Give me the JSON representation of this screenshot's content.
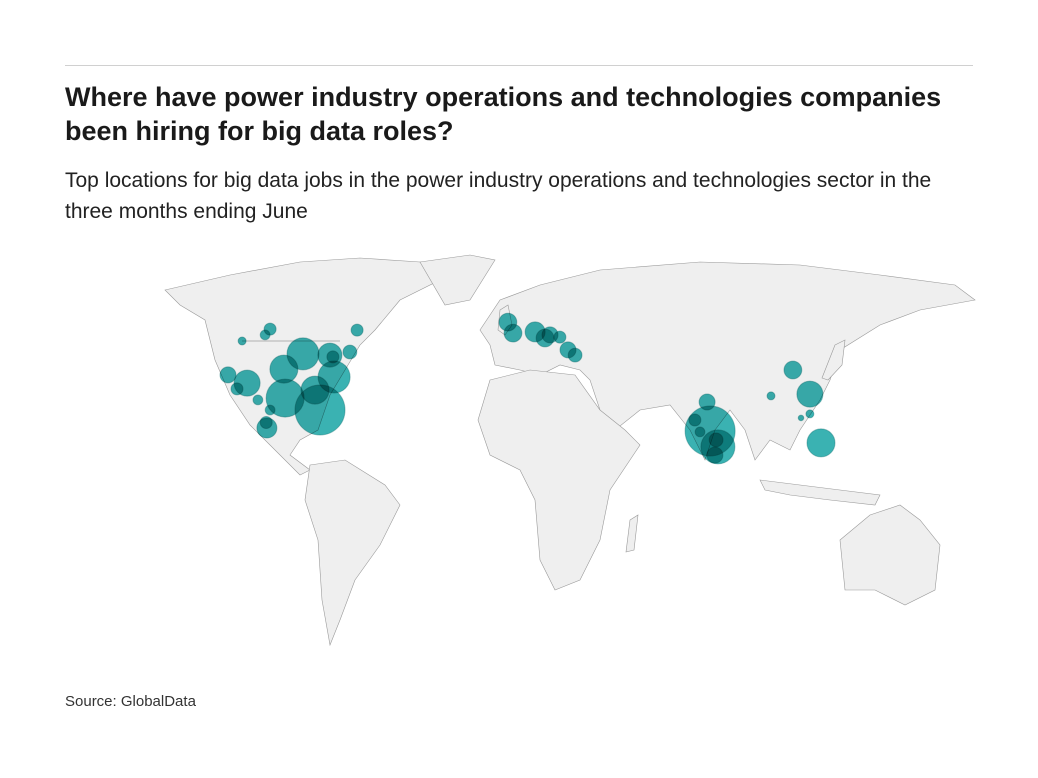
{
  "header": {
    "title": "Where have power industry operations and technologies companies been hiring for big data roles?",
    "subtitle": "Top locations for big data jobs in the power industry operations and technologies sector in the three months ending June"
  },
  "footer": {
    "source": "Source: GlobalData"
  },
  "colors": {
    "bubble": "#17a5a5",
    "land": "#efefef",
    "border": "#9a9a9a"
  },
  "map": {
    "bubbles": [
      {
        "lon": -104.3,
        "lat": 51.1,
        "value": 9
      },
      {
        "lon": -106.5,
        "lat": 49.2,
        "value": 6
      },
      {
        "lon": -116.5,
        "lat": 47.2,
        "value": 4
      },
      {
        "lon": -90.0,
        "lat": 43.0,
        "value": 64
      },
      {
        "lon": -98.3,
        "lat": 38.0,
        "value": 49
      },
      {
        "lon": -122.6,
        "lat": 36.1,
        "value": 16
      },
      {
        "lon": -114.3,
        "lat": 33.4,
        "value": 42
      },
      {
        "lon": -118.7,
        "lat": 31.5,
        "value": 9
      },
      {
        "lon": -97.8,
        "lat": 28.5,
        "value": 90
      },
      {
        "lon": -78.3,
        "lat": 42.6,
        "value": 36
      },
      {
        "lon": -76.5,
        "lat": 35.4,
        "value": 64
      },
      {
        "lon": -84.8,
        "lat": 31.1,
        "value": 49
      },
      {
        "lon": -82.6,
        "lat": 24.6,
        "value": 156
      },
      {
        "lon": -77.0,
        "lat": 42.0,
        "value": 9
      },
      {
        "lon": -69.6,
        "lat": 43.6,
        "value": 12
      },
      {
        "lon": -66.5,
        "lat": 50.8,
        "value": 9
      },
      {
        "lon": -109.6,
        "lat": 27.9,
        "value": 6
      },
      {
        "lon": -104.3,
        "lat": 24.6,
        "value": 6
      },
      {
        "lon": -105.7,
        "lat": 18.7,
        "value": 25
      },
      {
        "lon": -106.0,
        "lat": 20.5,
        "value": 9
      },
      {
        "lon": -0.9,
        "lat": 53.4,
        "value": 20
      },
      {
        "lon": 1.3,
        "lat": 49.8,
        "value": 20
      },
      {
        "lon": 10.9,
        "lat": 50.2,
        "value": 25
      },
      {
        "lon": 17.4,
        "lat": 49.2,
        "value": 16
      },
      {
        "lon": 15.2,
        "lat": 48.2,
        "value": 20
      },
      {
        "lon": 21.7,
        "lat": 48.5,
        "value": 9
      },
      {
        "lon": 25.2,
        "lat": 44.3,
        "value": 16
      },
      {
        "lon": 28.3,
        "lat": 42.6,
        "value": 12
      },
      {
        "lon": 123.0,
        "lat": 37.7,
        "value": 20
      },
      {
        "lon": 113.5,
        "lat": 29.2,
        "value": 4
      },
      {
        "lon": 130.4,
        "lat": 29.8,
        "value": 42
      },
      {
        "lon": 126.5,
        "lat": 22.0,
        "value": 2
      },
      {
        "lon": 130.4,
        "lat": 23.3,
        "value": 4
      },
      {
        "lon": 135.2,
        "lat": 13.8,
        "value": 49
      },
      {
        "lon": 85.7,
        "lat": 27.2,
        "value": 16
      },
      {
        "lon": 87.0,
        "lat": 17.7,
        "value": 156
      },
      {
        "lon": 90.4,
        "lat": 12.5,
        "value": 72
      },
      {
        "lon": 80.4,
        "lat": 21.3,
        "value": 9
      },
      {
        "lon": 82.6,
        "lat": 17.4,
        "value": 6
      },
      {
        "lon": 89.6,
        "lat": 14.8,
        "value": 12
      },
      {
        "lon": 89.1,
        "lat": 9.8,
        "value": 16
      }
    ]
  }
}
